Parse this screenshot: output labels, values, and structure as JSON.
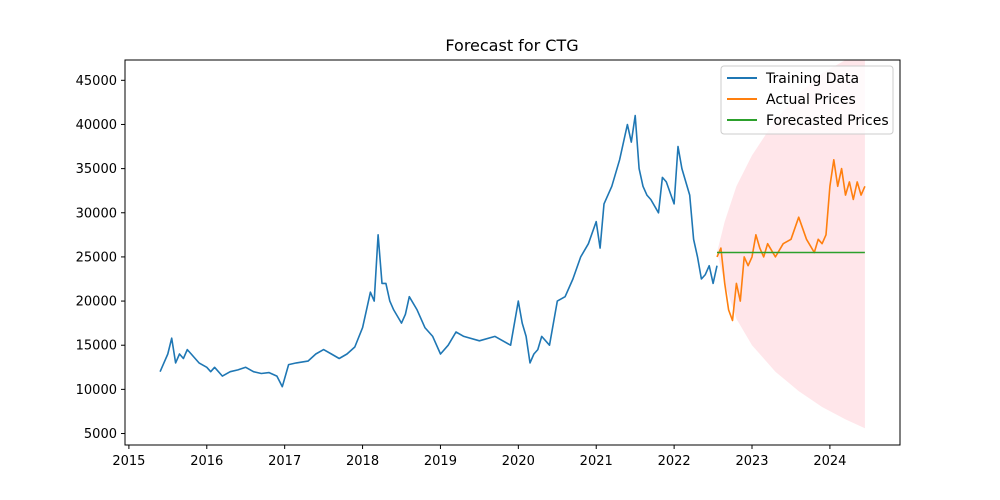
{
  "chart_data": {
    "type": "line",
    "title": "Forecast for CTG",
    "xlabel": "",
    "ylabel": "",
    "xlim": [
      2014.95,
      2024.9
    ],
    "ylim": [
      3700,
      47300
    ],
    "x_ticks": [
      2015,
      2016,
      2017,
      2018,
      2019,
      2020,
      2021,
      2022,
      2023,
      2024
    ],
    "x_tick_labels": [
      "2015",
      "2016",
      "2017",
      "2018",
      "2019",
      "2020",
      "2021",
      "2022",
      "2023",
      "2024"
    ],
    "y_ticks": [
      5000,
      10000,
      15000,
      20000,
      25000,
      30000,
      35000,
      40000,
      45000
    ],
    "y_tick_labels": [
      "5000",
      "10000",
      "15000",
      "20000",
      "25000",
      "30000",
      "35000",
      "40000",
      "45000"
    ],
    "grid": false,
    "legend_position": "top-right",
    "series": [
      {
        "name": "Training Data",
        "color": "#1f77b4",
        "x": [
          2015.4,
          2015.45,
          2015.5,
          2015.55,
          2015.6,
          2015.65,
          2015.7,
          2015.75,
          2015.8,
          2015.9,
          2016.0,
          2016.05,
          2016.1,
          2016.2,
          2016.3,
          2016.4,
          2016.5,
          2016.6,
          2016.7,
          2016.8,
          2016.9,
          2016.97,
          2017.05,
          2017.15,
          2017.3,
          2017.4,
          2017.5,
          2017.6,
          2017.7,
          2017.8,
          2017.9,
          2018.0,
          2018.05,
          2018.1,
          2018.15,
          2018.2,
          2018.25,
          2018.3,
          2018.35,
          2018.4,
          2018.5,
          2018.55,
          2018.6,
          2018.7,
          2018.8,
          2018.9,
          2019.0,
          2019.1,
          2019.2,
          2019.3,
          2019.5,
          2019.7,
          2019.9,
          2020.0,
          2020.05,
          2020.1,
          2020.15,
          2020.2,
          2020.25,
          2020.3,
          2020.4,
          2020.5,
          2020.6,
          2020.7,
          2020.8,
          2020.9,
          2021.0,
          2021.05,
          2021.1,
          2021.2,
          2021.3,
          2021.4,
          2021.45,
          2021.5,
          2021.55,
          2021.6,
          2021.65,
          2021.7,
          2021.8,
          2021.85,
          2021.9,
          2022.0,
          2022.05,
          2022.1,
          2022.15,
          2022.2,
          2022.25,
          2022.3,
          2022.35,
          2022.4,
          2022.45,
          2022.5,
          2022.55
        ],
        "y": [
          12000,
          13000,
          14000,
          15800,
          13000,
          14000,
          13500,
          14500,
          14000,
          13000,
          12500,
          12000,
          12500,
          11500,
          12000,
          12200,
          12500,
          12000,
          11800,
          11900,
          11500,
          10300,
          12800,
          13000,
          13200,
          14000,
          14500,
          14000,
          13500,
          14000,
          14800,
          17000,
          19000,
          21000,
          20000,
          27500,
          22000,
          22000,
          20000,
          19000,
          17500,
          18500,
          20500,
          19000,
          17000,
          16000,
          14000,
          15000,
          16500,
          16000,
          15500,
          16000,
          15000,
          20000,
          17500,
          16000,
          13000,
          14000,
          14500,
          16000,
          15000,
          20000,
          20500,
          22500,
          25000,
          26500,
          29000,
          26000,
          31000,
          33000,
          36000,
          40000,
          38000,
          41000,
          35000,
          33000,
          32000,
          31500,
          30000,
          34000,
          33500,
          31000,
          37500,
          35000,
          33500,
          32000,
          27000,
          25000,
          22500,
          23000,
          24000,
          22000,
          24000
        ]
      },
      {
        "name": "Actual Prices",
        "color": "#ff7f0e",
        "x": [
          2022.55,
          2022.6,
          2022.65,
          2022.7,
          2022.75,
          2022.8,
          2022.85,
          2022.9,
          2022.95,
          2023.0,
          2023.05,
          2023.1,
          2023.15,
          2023.2,
          2023.3,
          2023.4,
          2023.5,
          2023.6,
          2023.7,
          2023.8,
          2023.85,
          2023.9,
          2023.95,
          2024.0,
          2024.05,
          2024.1,
          2024.15,
          2024.2,
          2024.25,
          2024.3,
          2024.35,
          2024.4,
          2024.45
        ],
        "y": [
          25000,
          26000,
          22000,
          19000,
          17800,
          22000,
          20000,
          25000,
          24000,
          25000,
          27500,
          26000,
          25000,
          26500,
          25000,
          26500,
          27000,
          29500,
          27000,
          25500,
          27000,
          26500,
          27500,
          33000,
          36000,
          33000,
          35000,
          32000,
          33500,
          31500,
          33500,
          32000,
          33000
        ]
      },
      {
        "name": "Forecasted Prices",
        "color": "#2ca02c",
        "x": [
          2022.55,
          2024.45
        ],
        "y": [
          25500,
          25500
        ]
      }
    ],
    "confidence_band": {
      "color": "#ffc0cb",
      "x": [
        2022.55,
        2022.65,
        2022.8,
        2023.0,
        2023.3,
        2023.6,
        2023.9,
        2024.2,
        2024.45
      ],
      "upper": [
        25500,
        29000,
        33000,
        36500,
        40500,
        43500,
        45800,
        47300,
        48500
      ],
      "lower": [
        25500,
        22000,
        18000,
        15000,
        12000,
        9800,
        8000,
        6600,
        5600
      ]
    }
  }
}
